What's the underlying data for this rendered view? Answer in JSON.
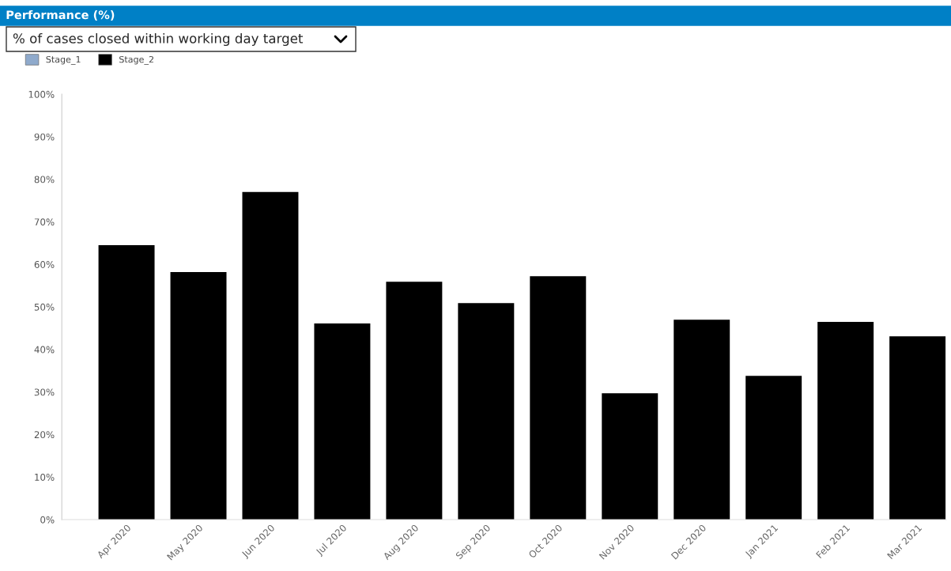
{
  "chart_data": {
    "type": "bar",
    "title": "Performance (%)",
    "subtitle": "% of cases closed within working day target",
    "categories": [
      "Apr 2020",
      "May 2020",
      "Jun 2020",
      "Jul 2020",
      "Aug 2020",
      "Sep 2020",
      "Oct 2020",
      "Nov 2020",
      "Dec 2020",
      "Jan 2021",
      "Feb 2021",
      "Mar 2021"
    ],
    "series": [
      {
        "name": "Stage_1",
        "color": "#8faacc",
        "values": [
          null,
          null,
          null,
          null,
          null,
          null,
          null,
          null,
          null,
          null,
          null,
          null
        ]
      },
      {
        "name": "Stage_2",
        "color": "#000000",
        "values": [
          64.5,
          58.2,
          77.0,
          46.1,
          55.9,
          50.9,
          57.2,
          29.7,
          47.0,
          33.8,
          46.5,
          43.1
        ]
      }
    ],
    "ylim": [
      0,
      100
    ],
    "yticks": [
      {
        "value": 0,
        "label": "0%"
      },
      {
        "value": 10,
        "label": "10%"
      },
      {
        "value": 20,
        "label": "20%"
      },
      {
        "value": 30,
        "label": "30%"
      },
      {
        "value": 40,
        "label": "40%"
      },
      {
        "value": 50,
        "label": "50%"
      },
      {
        "value": 60,
        "label": "60%"
      },
      {
        "value": 70,
        "label": "70%"
      },
      {
        "value": 80,
        "label": "80%"
      },
      {
        "value": 90,
        "label": "90%"
      },
      {
        "value": 100,
        "label": "100%"
      }
    ],
    "grid": false,
    "legend": "top left"
  }
}
